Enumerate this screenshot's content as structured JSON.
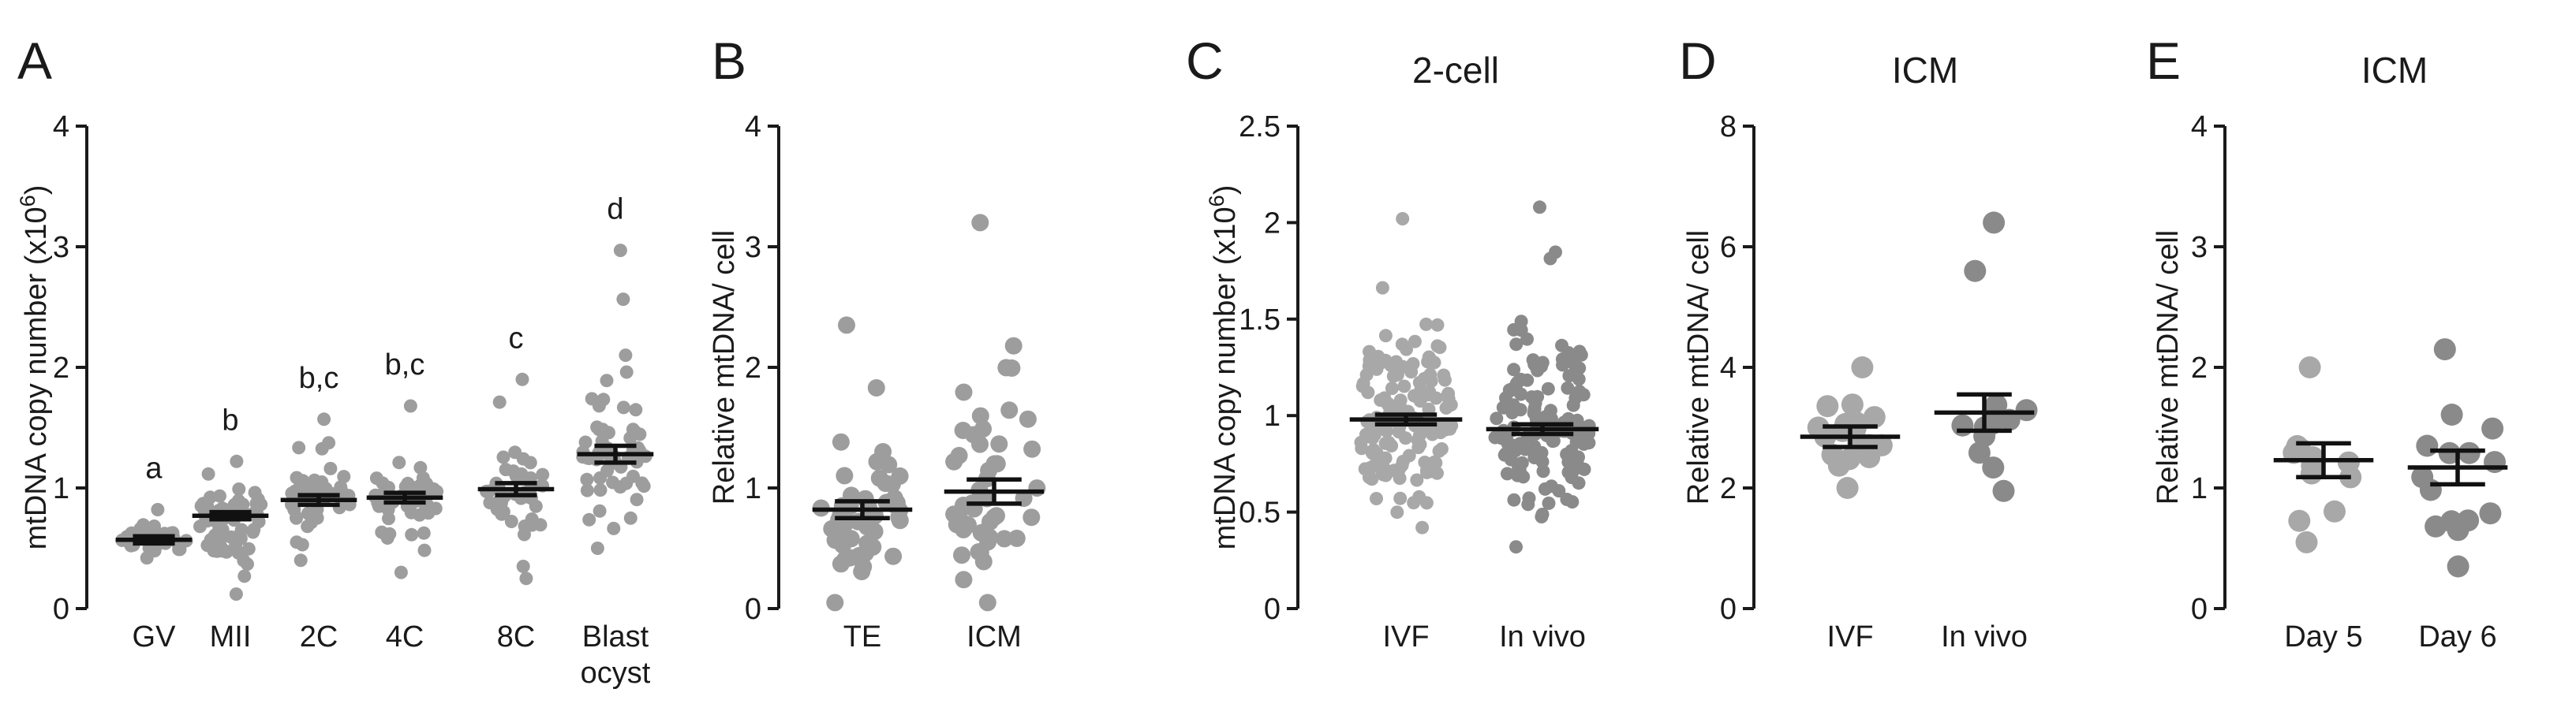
{
  "chart_data": [
    {
      "panel": "A",
      "type": "scatter",
      "title": "",
      "ylabel": "mtDNA copy number (x10",
      "ylabel_sup": "6",
      "ylabel_end": ")",
      "ylim": [
        0,
        4
      ],
      "yticks": [
        "0",
        "1",
        "2",
        "3",
        "4"
      ],
      "categories": [
        {
          "label": "GV",
          "label2": "",
          "mean": 0.57,
          "sem": 0.03,
          "sig": "a",
          "n": 30,
          "min": 0.42,
          "max": 0.82,
          "color": "#9d9d9d"
        },
        {
          "label": "MII",
          "label2": "",
          "mean": 0.77,
          "sem": 0.03,
          "sig": "b",
          "n": 70,
          "min": 0.12,
          "max": 1.22,
          "color": "#9d9d9d"
        },
        {
          "label": "2C",
          "label2": "",
          "mean": 0.9,
          "sem": 0.04,
          "sig": "b,c",
          "n": 50,
          "min": 0.4,
          "max": 1.57,
          "color": "#9d9d9d"
        },
        {
          "label": "4C",
          "label2": "",
          "mean": 0.92,
          "sem": 0.04,
          "sig": "b,c",
          "n": 50,
          "min": 0.3,
          "max": 1.68,
          "color": "#9d9d9d"
        },
        {
          "label": "8C",
          "label2": "",
          "mean": 0.99,
          "sem": 0.05,
          "sig": "c",
          "n": 45,
          "min": 0.25,
          "max": 1.9,
          "color": "#9d9d9d"
        },
        {
          "label": "Blast",
          "label2": "ocyst",
          "mean": 1.28,
          "sem": 0.07,
          "sig": "d",
          "n": 55,
          "min": 0.5,
          "max": 2.97,
          "color": "#9d9d9d"
        }
      ]
    },
    {
      "panel": "B",
      "type": "scatter",
      "title": "",
      "ylabel": "Relative mtDNA/ cell",
      "ylabel_sup": "",
      "ylabel_end": "",
      "ylim": [
        0,
        4
      ],
      "yticks": [
        "0",
        "1",
        "2",
        "3",
        "4"
      ],
      "categories": [
        {
          "label": "TE",
          "label2": "",
          "mean": 0.82,
          "sem": 0.07,
          "sig": "",
          "n": 50,
          "min": 0.05,
          "max": 2.35,
          "color": "#9d9d9d"
        },
        {
          "label": "ICM",
          "label2": "",
          "mean": 0.97,
          "sem": 0.1,
          "sig": "",
          "n": 50,
          "min": 0.05,
          "max": 3.2,
          "color": "#9d9d9d"
        }
      ]
    },
    {
      "panel": "C",
      "type": "scatter",
      "title": "2-cell",
      "ylabel": "mtDNA copy number (x10",
      "ylabel_sup": "6",
      "ylabel_end": ")",
      "ylim": [
        0,
        2.5
      ],
      "yticks": [
        "0",
        "0.5",
        "1",
        "1.5",
        "2",
        "2.5"
      ],
      "categories": [
        {
          "label": "IVF",
          "label2": "",
          "mean": 0.98,
          "sem": 0.025,
          "sig": "",
          "n": 150,
          "min": 0.42,
          "max": 2.02,
          "color": "#a8a8a8"
        },
        {
          "label": "In vivo",
          "label2": "",
          "mean": 0.93,
          "sem": 0.025,
          "sig": "",
          "n": 140,
          "min": 0.32,
          "max": 2.08,
          "color": "#8a8a8a"
        }
      ]
    },
    {
      "panel": "D",
      "type": "scatter",
      "title": "ICM",
      "ylabel": "Relative mtDNA/ cell",
      "ylabel_sup": "",
      "ylabel_end": "",
      "ylim": [
        0,
        8
      ],
      "yticks": [
        "0",
        "2",
        "4",
        "6",
        "8"
      ],
      "categories": [
        {
          "label": "IVF",
          "label2": "",
          "mean": 2.85,
          "sem": 0.17,
          "sig": "",
          "n": 18,
          "min": 2.0,
          "max": 4.0,
          "color": "#a8a8a8"
        },
        {
          "label": "In vivo",
          "label2": "",
          "mean": 3.25,
          "sem": 0.3,
          "sig": "",
          "n": 12,
          "min": 1.95,
          "max": 6.4,
          "color": "#8a8a8a"
        }
      ]
    },
    {
      "panel": "E",
      "type": "scatter",
      "title": "ICM",
      "ylabel": "Relative mtDNA/ cell",
      "ylabel_sup": "",
      "ylabel_end": "",
      "ylim": [
        0,
        4
      ],
      "yticks": [
        "0",
        "1",
        "2",
        "3",
        "4"
      ],
      "categories": [
        {
          "label": "Day 5",
          "label2": "",
          "mean": 1.23,
          "sem": 0.14,
          "sig": "",
          "n": 12,
          "min": 0.55,
          "max": 2.0,
          "color": "#a8a8a8"
        },
        {
          "label": "Day 6",
          "label2": "",
          "mean": 1.17,
          "sem": 0.14,
          "sig": "",
          "n": 15,
          "min": 0.35,
          "max": 2.15,
          "color": "#8a8a8a"
        }
      ]
    }
  ]
}
